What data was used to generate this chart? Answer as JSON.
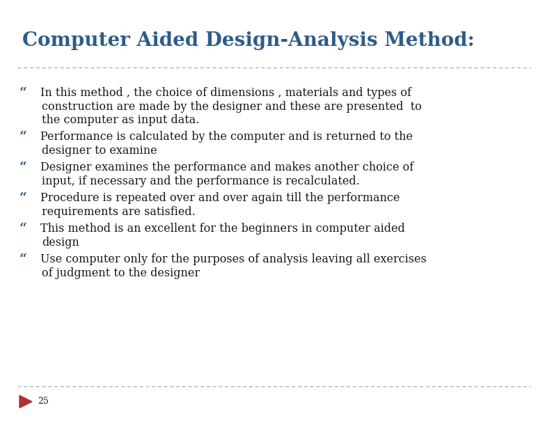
{
  "title": "Computer Aided Design-Analysis Method:",
  "title_color": "#2E5C8A",
  "title_fontsize": 20,
  "background_color": "#ffffff",
  "bullet_color": "#2E5C8A",
  "text_color": "#1a1a1a",
  "bullet_char": "“",
  "page_number": "25",
  "arrow_color": "#B03030",
  "separator_color": "#aaaaaa",
  "bullet_points": [
    [
      "In this method , the choice of dimensions , materials and types of",
      "construction are made by the designer and these are presented  to",
      "the computer as input data."
    ],
    [
      "Performance is calculated by the computer and is returned to the",
      "designer to examine"
    ],
    [
      "Designer examines the performance and makes another choice of",
      "input, if necessary and the performance is recalculated."
    ],
    [
      "Procedure is repeated over and over again till the performance",
      "requirements are satisfied."
    ],
    [
      "This method is an excellent for the beginners in computer aided",
      "design"
    ],
    [
      "Use computer only for the purposes of analysis leaving all exercises",
      "of judgment to the designer"
    ]
  ],
  "text_fontsize": 11.5,
  "font_family": "serif",
  "fig_width": 7.8,
  "fig_height": 6.12,
  "dpi": 100
}
